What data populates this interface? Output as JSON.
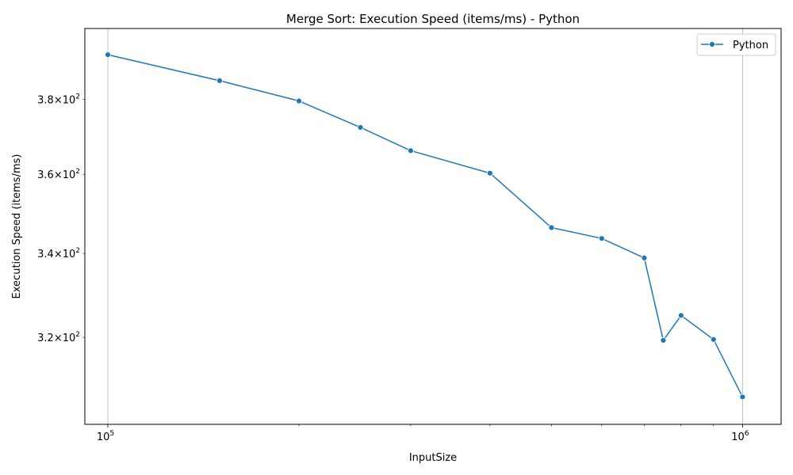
{
  "chart_data": {
    "type": "line",
    "title": "Merge Sort: Execution Speed (items/ms) - Python",
    "xlabel": "InputSize",
    "ylabel": "Execution Speed (items/ms)",
    "xscale": "log",
    "yscale": "log",
    "xlim": [
      92000,
      1150000
    ],
    "ylim": [
      300.5,
      400
    ],
    "x_ticks": [
      {
        "value": 100000,
        "base": "10",
        "exp": "5"
      },
      {
        "value": 1000000,
        "base": "10",
        "exp": "6"
      }
    ],
    "y_ticks": [
      {
        "value": 320,
        "mantissa": "3.2",
        "exp": "2"
      },
      {
        "value": 340,
        "mantissa": "3.4",
        "exp": "2"
      },
      {
        "value": 360,
        "mantissa": "3.6",
        "exp": "2"
      },
      {
        "value": 380,
        "mantissa": "3.8",
        "exp": "2"
      }
    ],
    "x_minor_ticks": [
      200000,
      300000,
      400000,
      500000,
      600000,
      700000,
      800000,
      900000
    ],
    "grid": "x-major",
    "legend_position": "top-right",
    "series": [
      {
        "name": "Python",
        "color": "#1f77b4",
        "marker": "circle",
        "points": [
          {
            "x": 100000,
            "y": 392.5
          },
          {
            "x": 150000,
            "y": 385.2
          },
          {
            "x": 200000,
            "y": 379.6
          },
          {
            "x": 250000,
            "y": 372.4
          },
          {
            "x": 300000,
            "y": 366.2
          },
          {
            "x": 400000,
            "y": 360.3
          },
          {
            "x": 500000,
            "y": 346.4
          },
          {
            "x": 600000,
            "y": 343.7
          },
          {
            "x": 700000,
            "y": 338.9
          },
          {
            "x": 750000,
            "y": 319.3
          },
          {
            "x": 800000,
            "y": 325.1
          },
          {
            "x": 900000,
            "y": 319.5
          },
          {
            "x": 1000000,
            "y": 306.5
          }
        ]
      }
    ]
  }
}
